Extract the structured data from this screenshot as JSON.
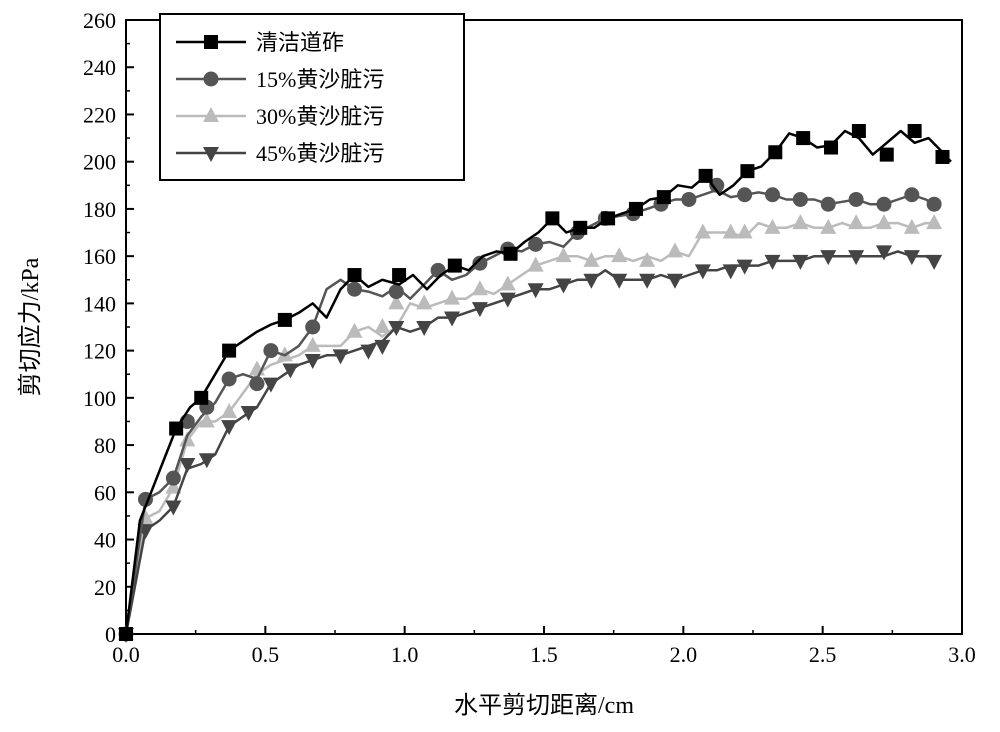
{
  "chart_data": {
    "type": "line",
    "xlabel": "水平剪切距离/cm",
    "ylabel": "剪切应力/kPa",
    "xlim": [
      0.0,
      3.0
    ],
    "ylim": [
      0,
      260
    ],
    "xticks": [
      "0.0",
      "0.5",
      "1.0",
      "1.5",
      "2.0",
      "2.5",
      "3.0"
    ],
    "yticks": [
      "0",
      "20",
      "40",
      "60",
      "80",
      "100",
      "120",
      "140",
      "160",
      "180",
      "200",
      "220",
      "240",
      "260"
    ],
    "legend_position": "top-left",
    "grid": false,
    "series": [
      {
        "name": "清洁道砟",
        "marker": "square",
        "color": "#000000",
        "x": [
          0.0,
          0.05,
          0.09,
          0.13,
          0.18,
          0.23,
          0.27,
          0.32,
          0.37,
          0.42,
          0.47,
          0.52,
          0.57,
          0.62,
          0.67,
          0.72,
          0.77,
          0.82,
          0.87,
          0.92,
          0.98,
          1.03,
          1.08,
          1.13,
          1.18,
          1.23,
          1.28,
          1.33,
          1.38,
          1.43,
          1.48,
          1.53,
          1.58,
          1.63,
          1.68,
          1.73,
          1.78,
          1.83,
          1.88,
          1.93,
          1.98,
          2.03,
          2.08,
          2.13,
          2.18,
          2.23,
          2.28,
          2.33,
          2.38,
          2.43,
          2.48,
          2.53,
          2.58,
          2.63,
          2.68,
          2.73,
          2.78,
          2.83,
          2.88,
          2.93,
          2.96
        ],
        "y": [
          0,
          48,
          60,
          72,
          87,
          96,
          100,
          110,
          120,
          124,
          128,
          131,
          133,
          136,
          140,
          134,
          146,
          152,
          147,
          150,
          148,
          152,
          146,
          152,
          156,
          154,
          160,
          162,
          161,
          166,
          170,
          176,
          170,
          172,
          172,
          176,
          178,
          180,
          184,
          185,
          190,
          189,
          194,
          186,
          190,
          196,
          198,
          204,
          212,
          210,
          206,
          207,
          213,
          210,
          203,
          208,
          213,
          208,
          210,
          204,
          200
        ],
        "markers_x": [
          0.0,
          0.18,
          0.27,
          0.37,
          0.57,
          0.82,
          0.98,
          1.18,
          1.38,
          1.53,
          1.63,
          1.73,
          1.83,
          1.93,
          2.08,
          2.23,
          2.33,
          2.43,
          2.53,
          2.63,
          2.73,
          2.83,
          2.93
        ],
        "markers_y": [
          0,
          87,
          100,
          120,
          133,
          152,
          152,
          156,
          161,
          176,
          172,
          176,
          180,
          185,
          194,
          196,
          204,
          210,
          206,
          213,
          203,
          213,
          202
        ]
      },
      {
        "name": "15%黄沙脏污",
        "marker": "circle",
        "color": "#555555",
        "x": [
          0.0,
          0.07,
          0.12,
          0.17,
          0.22,
          0.27,
          0.32,
          0.37,
          0.42,
          0.47,
          0.52,
          0.57,
          0.62,
          0.67,
          0.72,
          0.77,
          0.82,
          0.87,
          0.92,
          0.97,
          1.02,
          1.07,
          1.12,
          1.17,
          1.22,
          1.27,
          1.32,
          1.37,
          1.42,
          1.47,
          1.52,
          1.57,
          1.62,
          1.67,
          1.72,
          1.77,
          1.82,
          1.87,
          1.92,
          1.97,
          2.02,
          2.07,
          2.12,
          2.17,
          2.22,
          2.27,
          2.32,
          2.37,
          2.42,
          2.47,
          2.52,
          2.57,
          2.62,
          2.67,
          2.72,
          2.77,
          2.82,
          2.87,
          2.9
        ],
        "y": [
          0,
          57,
          60,
          66,
          84,
          92,
          98,
          108,
          110,
          108,
          120,
          118,
          122,
          130,
          146,
          150,
          146,
          145,
          143,
          147,
          142,
          148,
          154,
          150,
          152,
          157,
          160,
          163,
          162,
          165,
          166,
          164,
          170,
          173,
          176,
          177,
          178,
          180,
          182,
          184,
          184,
          186,
          188,
          185,
          186,
          187,
          186,
          184,
          184,
          184,
          182,
          183,
          184,
          182,
          182,
          184,
          186,
          184,
          182
        ],
        "markers_x": [
          0.0,
          0.07,
          0.17,
          0.22,
          0.29,
          0.37,
          0.47,
          0.52,
          0.67,
          0.82,
          0.97,
          1.12,
          1.27,
          1.37,
          1.47,
          1.62,
          1.72,
          1.82,
          1.92,
          2.02,
          2.12,
          2.22,
          2.32,
          2.42,
          2.52,
          2.62,
          2.72,
          2.82,
          2.9
        ],
        "markers_y": [
          0,
          57,
          66,
          90,
          96,
          108,
          106,
          120,
          130,
          146,
          145,
          154,
          157,
          163,
          165,
          170,
          176,
          178,
          182,
          184,
          190,
          186,
          186,
          184,
          182,
          184,
          182,
          186,
          182
        ]
      },
      {
        "name": "30%黄沙脏污",
        "marker": "triangle-up",
        "color": "#bbbbbb",
        "x": [
          0.0,
          0.07,
          0.12,
          0.17,
          0.22,
          0.27,
          0.32,
          0.37,
          0.42,
          0.47,
          0.52,
          0.57,
          0.62,
          0.67,
          0.72,
          0.77,
          0.82,
          0.87,
          0.92,
          0.97,
          1.02,
          1.07,
          1.12,
          1.17,
          1.22,
          1.27,
          1.32,
          1.37,
          1.42,
          1.47,
          1.52,
          1.57,
          1.62,
          1.67,
          1.72,
          1.77,
          1.82,
          1.87,
          1.92,
          1.97,
          2.02,
          2.07,
          2.12,
          2.17,
          2.22,
          2.27,
          2.32,
          2.37,
          2.42,
          2.47,
          2.52,
          2.57,
          2.62,
          2.67,
          2.72,
          2.77,
          2.82,
          2.87,
          2.9
        ],
        "y": [
          0,
          49,
          52,
          62,
          82,
          90,
          90,
          94,
          102,
          110,
          114,
          116,
          118,
          122,
          122,
          122,
          128,
          130,
          126,
          130,
          140,
          138,
          140,
          142,
          142,
          146,
          144,
          148,
          152,
          156,
          158,
          160,
          160,
          158,
          160,
          160,
          158,
          160,
          158,
          162,
          160,
          170,
          170,
          170,
          168,
          174,
          172,
          172,
          174,
          172,
          172,
          174,
          172,
          172,
          174,
          174,
          172,
          174,
          174
        ],
        "markers_x": [
          0.0,
          0.07,
          0.17,
          0.22,
          0.29,
          0.37,
          0.47,
          0.57,
          0.67,
          0.82,
          0.92,
          0.97,
          1.07,
          1.17,
          1.27,
          1.37,
          1.47,
          1.57,
          1.67,
          1.77,
          1.87,
          1.97,
          2.07,
          2.17,
          2.22,
          2.32,
          2.42,
          2.52,
          2.62,
          2.72,
          2.82,
          2.9
        ],
        "markers_y": [
          0,
          49,
          62,
          82,
          90,
          94,
          112,
          118,
          122,
          128,
          130,
          140,
          140,
          142,
          146,
          148,
          156,
          160,
          158,
          160,
          158,
          162,
          170,
          170,
          170,
          172,
          174,
          172,
          174,
          174,
          172,
          174
        ]
      },
      {
        "name": "45%黄沙脏污",
        "marker": "triangle-down",
        "color": "#444444",
        "x": [
          0.0,
          0.07,
          0.12,
          0.17,
          0.22,
          0.27,
          0.32,
          0.37,
          0.42,
          0.47,
          0.52,
          0.57,
          0.62,
          0.67,
          0.72,
          0.77,
          0.82,
          0.87,
          0.92,
          0.97,
          1.02,
          1.07,
          1.12,
          1.17,
          1.22,
          1.27,
          1.32,
          1.37,
          1.42,
          1.47,
          1.52,
          1.57,
          1.62,
          1.67,
          1.72,
          1.77,
          1.82,
          1.87,
          1.92,
          1.97,
          2.02,
          2.07,
          2.12,
          2.17,
          2.22,
          2.27,
          2.32,
          2.37,
          2.42,
          2.47,
          2.52,
          2.57,
          2.62,
          2.67,
          2.72,
          2.77,
          2.82,
          2.87,
          2.9
        ],
        "y": [
          0,
          44,
          48,
          54,
          70,
          72,
          76,
          88,
          92,
          96,
          106,
          110,
          114,
          116,
          118,
          118,
          120,
          122,
          124,
          130,
          128,
          130,
          134,
          134,
          136,
          138,
          140,
          142,
          144,
          146,
          146,
          148,
          150,
          150,
          154,
          150,
          150,
          150,
          152,
          150,
          152,
          154,
          154,
          156,
          156,
          156,
          158,
          158,
          158,
          160,
          160,
          160,
          160,
          160,
          160,
          162,
          160,
          160,
          158
        ],
        "markers_x": [
          0.0,
          0.07,
          0.17,
          0.22,
          0.29,
          0.37,
          0.44,
          0.52,
          0.59,
          0.67,
          0.77,
          0.87,
          0.92,
          0.97,
          1.07,
          1.17,
          1.27,
          1.37,
          1.47,
          1.57,
          1.67,
          1.77,
          1.87,
          1.97,
          2.07,
          2.17,
          2.22,
          2.32,
          2.42,
          2.52,
          2.62,
          2.72,
          2.82,
          2.9
        ],
        "markers_y": [
          0,
          44,
          54,
          72,
          74,
          88,
          94,
          106,
          112,
          116,
          118,
          120,
          122,
          130,
          130,
          134,
          138,
          142,
          146,
          148,
          150,
          150,
          150,
          150,
          154,
          154,
          156,
          158,
          158,
          160,
          160,
          162,
          160,
          158
        ]
      }
    ]
  }
}
